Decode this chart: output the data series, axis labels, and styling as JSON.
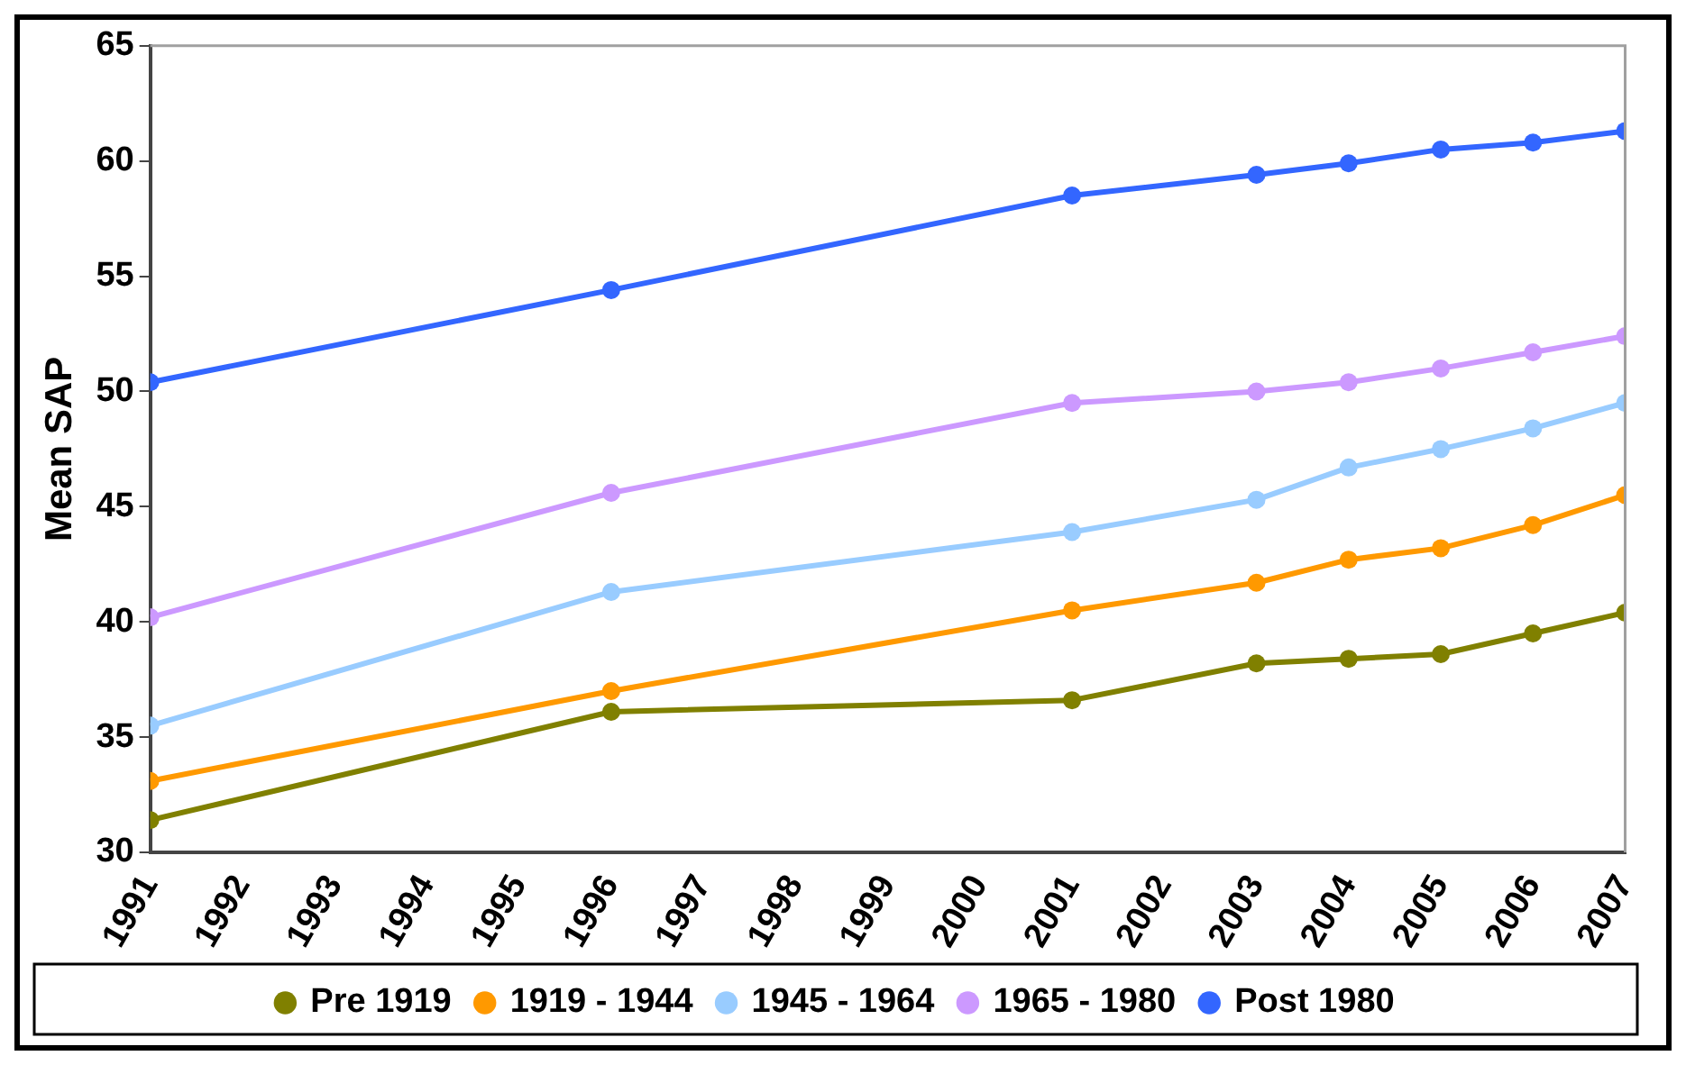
{
  "chart_data": {
    "type": "line",
    "ylabel": "Mean SAP",
    "x": [
      1991,
      1996,
      2001,
      2003,
      2004,
      2005,
      2006,
      2007
    ],
    "xlim": [
      1991,
      2007
    ],
    "xticks": [
      1991,
      1992,
      1993,
      1994,
      1995,
      1996,
      1997,
      1998,
      1999,
      2000,
      2001,
      2002,
      2003,
      2004,
      2005,
      2006,
      2007
    ],
    "ylim": [
      30,
      65
    ],
    "yticks": [
      30,
      35,
      40,
      45,
      50,
      55,
      60,
      65
    ],
    "grid": false,
    "legend": "bottom",
    "marker": "circle",
    "line_style": "solid",
    "series": [
      {
        "name": "Pre 1919",
        "color": "#808000",
        "values": [
          31.4,
          36.1,
          36.6,
          38.2,
          38.4,
          38.6,
          39.5,
          40.4
        ]
      },
      {
        "name": "1919 - 1944",
        "color": "#ff9900",
        "values": [
          33.1,
          37.0,
          40.5,
          41.7,
          42.7,
          43.2,
          44.2,
          45.5
        ]
      },
      {
        "name": "1945 - 1964",
        "color": "#99ccff",
        "values": [
          35.5,
          41.3,
          43.9,
          45.3,
          46.7,
          47.5,
          48.4,
          49.5
        ]
      },
      {
        "name": "1965 - 1980",
        "color": "#cc99ff",
        "values": [
          40.2,
          45.6,
          49.5,
          50.0,
          50.4,
          51.0,
          51.7,
          52.4
        ]
      },
      {
        "name": "Post 1980",
        "color": "#3366ff",
        "values": [
          50.4,
          54.4,
          58.5,
          59.4,
          59.9,
          60.5,
          60.8,
          61.3
        ]
      }
    ]
  }
}
